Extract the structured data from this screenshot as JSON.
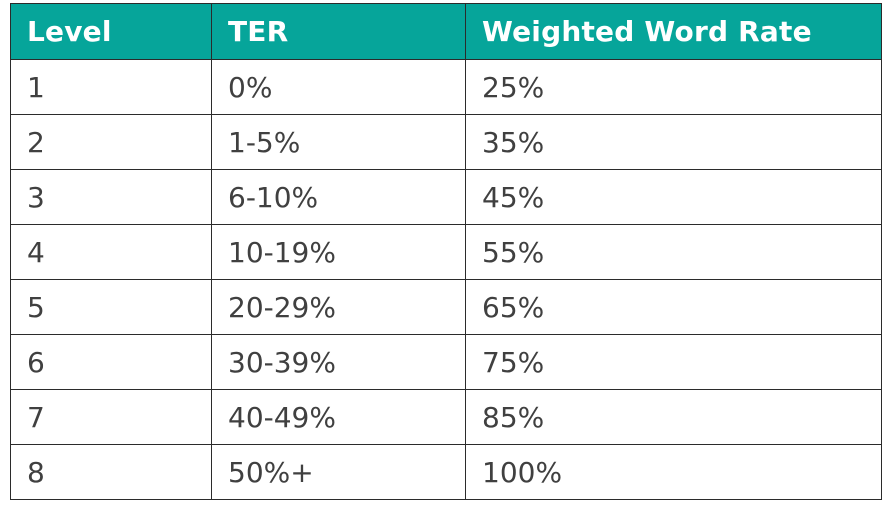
{
  "table": {
    "header_color": "#06a59a",
    "columns": [
      "Level",
      "TER",
      "Weighted Word Rate"
    ],
    "rows": [
      [
        "1",
        "0%",
        "25%"
      ],
      [
        "2",
        "1-5%",
        "35%"
      ],
      [
        "3",
        "6-10%",
        "45%"
      ],
      [
        "4",
        "10-19%",
        "55%"
      ],
      [
        "5",
        "20-29%",
        "65%"
      ],
      [
        "6",
        "30-39%",
        "75%"
      ],
      [
        "7",
        "40-49%",
        "85%"
      ],
      [
        "8",
        "50%+",
        "100%"
      ]
    ]
  }
}
